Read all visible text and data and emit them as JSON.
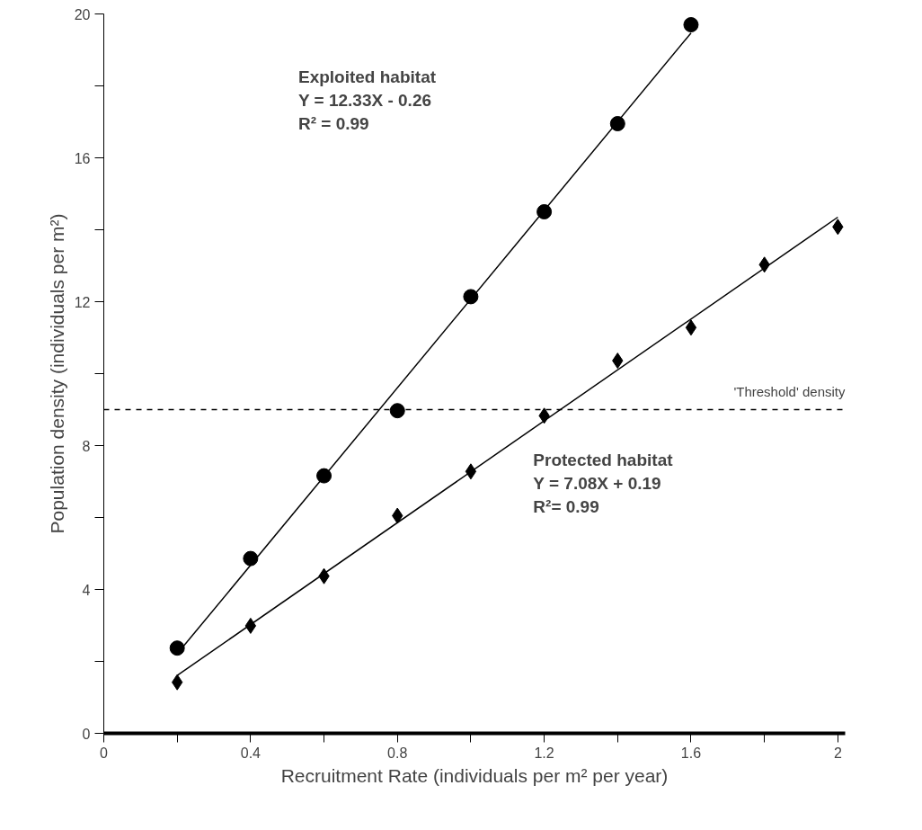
{
  "chart_data": {
    "type": "scatter",
    "xlabel": "Recruitment Rate (individuals per m² per year)",
    "ylabel": "Population density (individuals per m²)",
    "xlim": [
      0,
      2.02
    ],
    "ylim": [
      0,
      20
    ],
    "xticks": [
      0,
      {
        "value": 0.2,
        "label": null
      },
      0.4,
      {
        "value": 0.6,
        "label": null
      },
      0.8,
      {
        "value": 1.0,
        "label": null
      },
      1.2,
      {
        "value": 1.4,
        "label": null
      },
      1.6,
      {
        "value": 1.8,
        "label": null
      },
      2
    ],
    "yticks": [
      0,
      {
        "value": 2,
        "label": null
      },
      4,
      {
        "value": 6,
        "label": null
      },
      8,
      {
        "value": 10,
        "label": null
      },
      12,
      {
        "value": 14,
        "label": null
      },
      16,
      {
        "value": 18,
        "label": null
      },
      20
    ],
    "grid": false,
    "series": [
      {
        "marker": "circle",
        "color": "#000000",
        "x": [
          0.2,
          0.4,
          0.6,
          0.8,
          1.0,
          1.2,
          1.4,
          1.6
        ],
        "values": [
          2.37,
          4.86,
          7.16,
          8.97,
          12.14,
          14.5,
          16.95,
          19.7
        ]
      },
      {
        "marker": "diamond",
        "color": "#000000",
        "x": [
          0.2,
          0.4,
          0.6,
          0.8,
          1.0,
          1.2,
          1.4,
          1.6,
          1.8,
          2.0
        ],
        "values": [
          1.42,
          2.99,
          4.37,
          6.05,
          7.28,
          8.83,
          10.36,
          11.28,
          13.03,
          14.08
        ]
      },
      {
        "type": "line",
        "line_style": "solid",
        "color": "#000000",
        "x": [
          0.2,
          1.6
        ],
        "values": [
          2.21,
          19.47
        ]
      },
      {
        "type": "line",
        "line_style": "solid",
        "color": "#000000",
        "x": [
          0.2,
          2.0
        ],
        "values": [
          1.61,
          14.35
        ]
      }
    ],
    "ref_lines": [
      {
        "axis": "y",
        "value": 9,
        "label": "'Threshold' density",
        "line_style": "dashed",
        "color": "#000000"
      }
    ],
    "annotations": [
      "Exploited habitat",
      "Y = 12.33X - 0.26",
      "R² = 0.99",
      "Protected habitat",
      "Y = 7.08X + 0.19",
      "R²= 0.99"
    ]
  }
}
